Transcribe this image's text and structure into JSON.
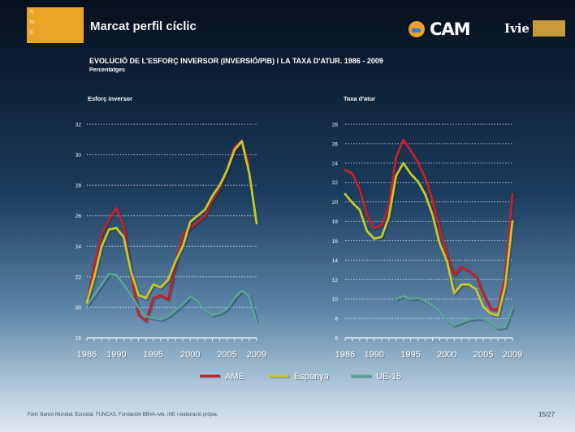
{
  "header": {
    "logo_lines": [
      "A",
      "M",
      "E"
    ],
    "slide_title": "Marcat perfil cíclic",
    "sponsor_1": "CAM",
    "sponsor_2": "Ivie"
  },
  "chart_title": "EVOLUCIÓ DE L'ESFORÇ INVERSOR (INVERSIÓ/PIB) I LA TAXA D'ATUR. 1986 - 2009",
  "chart_subtitle": "Percentatges",
  "footer": {
    "source": "Font: Banco Mundial, Eurostat, FUNCAS, Fundación BBVA-Ivie, INE i elaboració pròpia.",
    "page": "15/27"
  },
  "colors": {
    "AME": "#c8202b",
    "Espanya": "#c7c82a",
    "UE-15": "#5aa39a"
  },
  "chart_data": [
    {
      "type": "line",
      "title": "Esforç inversor",
      "x": [
        1986,
        1987,
        1988,
        1989,
        1990,
        1991,
        1992,
        1993,
        1994,
        1995,
        1996,
        1997,
        1998,
        1999,
        2000,
        2001,
        2002,
        2003,
        2004,
        2005,
        2006,
        2007,
        2008,
        2009
      ],
      "xticks": [
        1986,
        1990,
        1995,
        2000,
        2005,
        2009
      ],
      "yticks": [
        18,
        20,
        22,
        24,
        26,
        28,
        30,
        32
      ],
      "ylim": [
        18,
        32
      ],
      "grid": true,
      "series": [
        {
          "name": "AME",
          "values": [
            20.2,
            22.8,
            24.8,
            25.8,
            26.5,
            25.3,
            22.2,
            19.5,
            19.1,
            20.6,
            20.8,
            20.5,
            22.8,
            24.8,
            25.2,
            25.6,
            26.0,
            27.0,
            27.8,
            29.0,
            30.5,
            30.9,
            29.3,
            null
          ]
        },
        {
          "name": "Espanya",
          "values": [
            20.3,
            22.0,
            24.0,
            25.1,
            25.2,
            24.6,
            22.3,
            20.8,
            20.6,
            21.5,
            21.3,
            21.8,
            23.0,
            24.0,
            25.6,
            26.0,
            26.4,
            27.3,
            28.0,
            29.0,
            30.3,
            30.9,
            28.8,
            25.5
          ]
        },
        {
          "name": "UE-15",
          "values": [
            20.1,
            20.8,
            21.5,
            22.2,
            22.1,
            21.5,
            20.8,
            20.0,
            19.4,
            19.3,
            19.2,
            19.4,
            19.8,
            20.2,
            20.7,
            20.4,
            19.8,
            19.5,
            19.6,
            19.9,
            20.6,
            21.1,
            20.7,
            19.0
          ]
        }
      ]
    },
    {
      "type": "line",
      "title": "Taxa d'atur",
      "x": [
        1986,
        1987,
        1988,
        1989,
        1990,
        1991,
        1992,
        1993,
        1994,
        1995,
        1996,
        1997,
        1998,
        1999,
        2000,
        2001,
        2002,
        2003,
        2004,
        2005,
        2006,
        2007,
        2008,
        2009
      ],
      "xticks": [
        1986,
        1990,
        1995,
        2000,
        2005,
        2009
      ],
      "yticks": [
        6,
        8,
        10,
        12,
        14,
        16,
        18,
        20,
        22,
        24,
        26,
        28
      ],
      "ylim": [
        6,
        28
      ],
      "grid": true,
      "series": [
        {
          "name": "AME",
          "values": [
            23.3,
            22.9,
            21.3,
            18.7,
            17.3,
            17.6,
            19.5,
            24.6,
            26.4,
            25.3,
            24.1,
            22.5,
            20.2,
            17.2,
            14.5,
            12.5,
            13.3,
            12.9,
            12.3,
            10.5,
            9.0,
            8.9,
            12.3,
            20.8
          ]
        },
        {
          "name": "Espanya",
          "values": [
            20.8,
            19.9,
            19.2,
            17.0,
            16.2,
            16.4,
            18.4,
            22.7,
            24.0,
            22.9,
            22.1,
            20.8,
            18.7,
            15.7,
            13.9,
            10.6,
            11.5,
            11.5,
            11.0,
            9.2,
            8.5,
            8.3,
            11.3,
            18.0
          ]
        },
        {
          "name": "UE-15",
          "values": [
            null,
            null,
            null,
            null,
            null,
            null,
            null,
            10.0,
            10.3,
            10.0,
            10.1,
            9.8,
            9.3,
            8.7,
            7.8,
            7.3,
            7.6,
            7.9,
            8.0,
            8.0,
            7.5,
            7.0,
            7.1,
            9.1
          ]
        }
      ]
    }
  ],
  "legend": [
    "AME",
    "Espanya",
    "UE-15"
  ]
}
